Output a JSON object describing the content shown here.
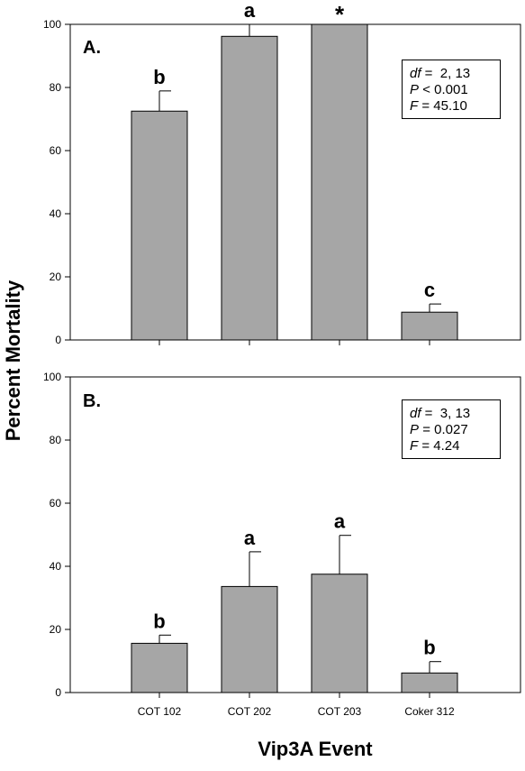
{
  "chart_data": [
    {
      "type": "bar",
      "panel_label": "A.",
      "categories": [
        "COT 102",
        "COT 202",
        "COT 203",
        "Coker 312"
      ],
      "values": [
        72.5,
        96.2,
        100,
        8.8
      ],
      "errors": [
        6.4,
        3.8,
        0,
        2.6
      ],
      "letters": [
        "b",
        "a",
        "*",
        "c"
      ],
      "ylim": [
        0,
        100
      ],
      "yticks": [
        0,
        20,
        40,
        60,
        80,
        100
      ],
      "stats": {
        "df": "2, 13",
        "p_op": "<",
        "p": "0.001",
        "f": "45.10"
      }
    },
    {
      "type": "bar",
      "panel_label": "B.",
      "categories": [
        "COT 102",
        "COT 202",
        "COT 203",
        "Coker 312"
      ],
      "values": [
        15.6,
        33.6,
        37.5,
        6.2
      ],
      "errors": [
        2.6,
        11.0,
        12.3,
        3.6
      ],
      "letters": [
        "b",
        "a",
        "a",
        "b"
      ],
      "ylim": [
        0,
        100
      ],
      "yticks": [
        0,
        20,
        40,
        60,
        80,
        100
      ],
      "stats": {
        "df": "3, 13",
        "p_op": "=",
        "p": "0.027",
        "f": "4.24"
      }
    }
  ],
  "ylabel": "Percent Mortality",
  "xlabel": "Vip3A Event",
  "bar_color": "#a6a6a6"
}
